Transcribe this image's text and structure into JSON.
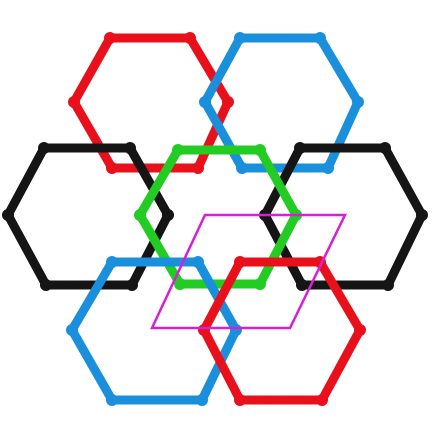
{
  "figure": {
    "description_colors": {
      "red": "#e8101a",
      "blue": "#1a8fdc",
      "black": "#151515",
      "green": "#22cc22",
      "cell": "#d61fd6"
    },
    "rings": [
      {
        "name": "ring-red-top",
        "color": "red"
      },
      {
        "name": "ring-blue-top",
        "color": "blue"
      },
      {
        "name": "ring-black-left",
        "color": "black"
      },
      {
        "name": "ring-black-right",
        "color": "black"
      },
      {
        "name": "ring-green-center",
        "color": "green"
      },
      {
        "name": "ring-blue-bottom",
        "color": "blue"
      },
      {
        "name": "ring-red-bottom",
        "color": "red"
      }
    ],
    "unit_cell": {
      "name": "unit-cell-parallelogram",
      "color": "cell"
    }
  }
}
